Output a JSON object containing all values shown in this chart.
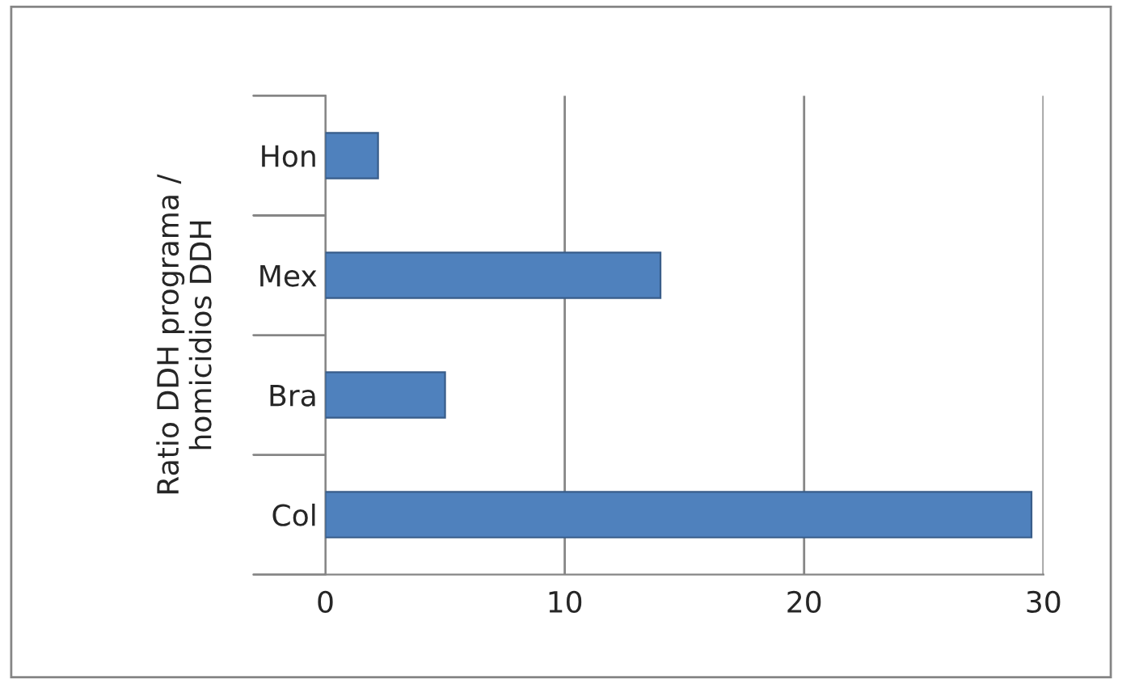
{
  "chart_data": {
    "type": "bar",
    "orientation": "horizontal",
    "ylabel": "Ratio DDH programa /\nhomicidios DDH",
    "categories": [
      "Hon",
      "Mex",
      "Bra",
      "Col"
    ],
    "values": [
      2.2,
      14,
      5,
      29.5
    ],
    "color": "#4f81bd",
    "xlim": [
      0,
      30
    ],
    "xticks": [
      0,
      10,
      20,
      30
    ],
    "grid": "x"
  }
}
